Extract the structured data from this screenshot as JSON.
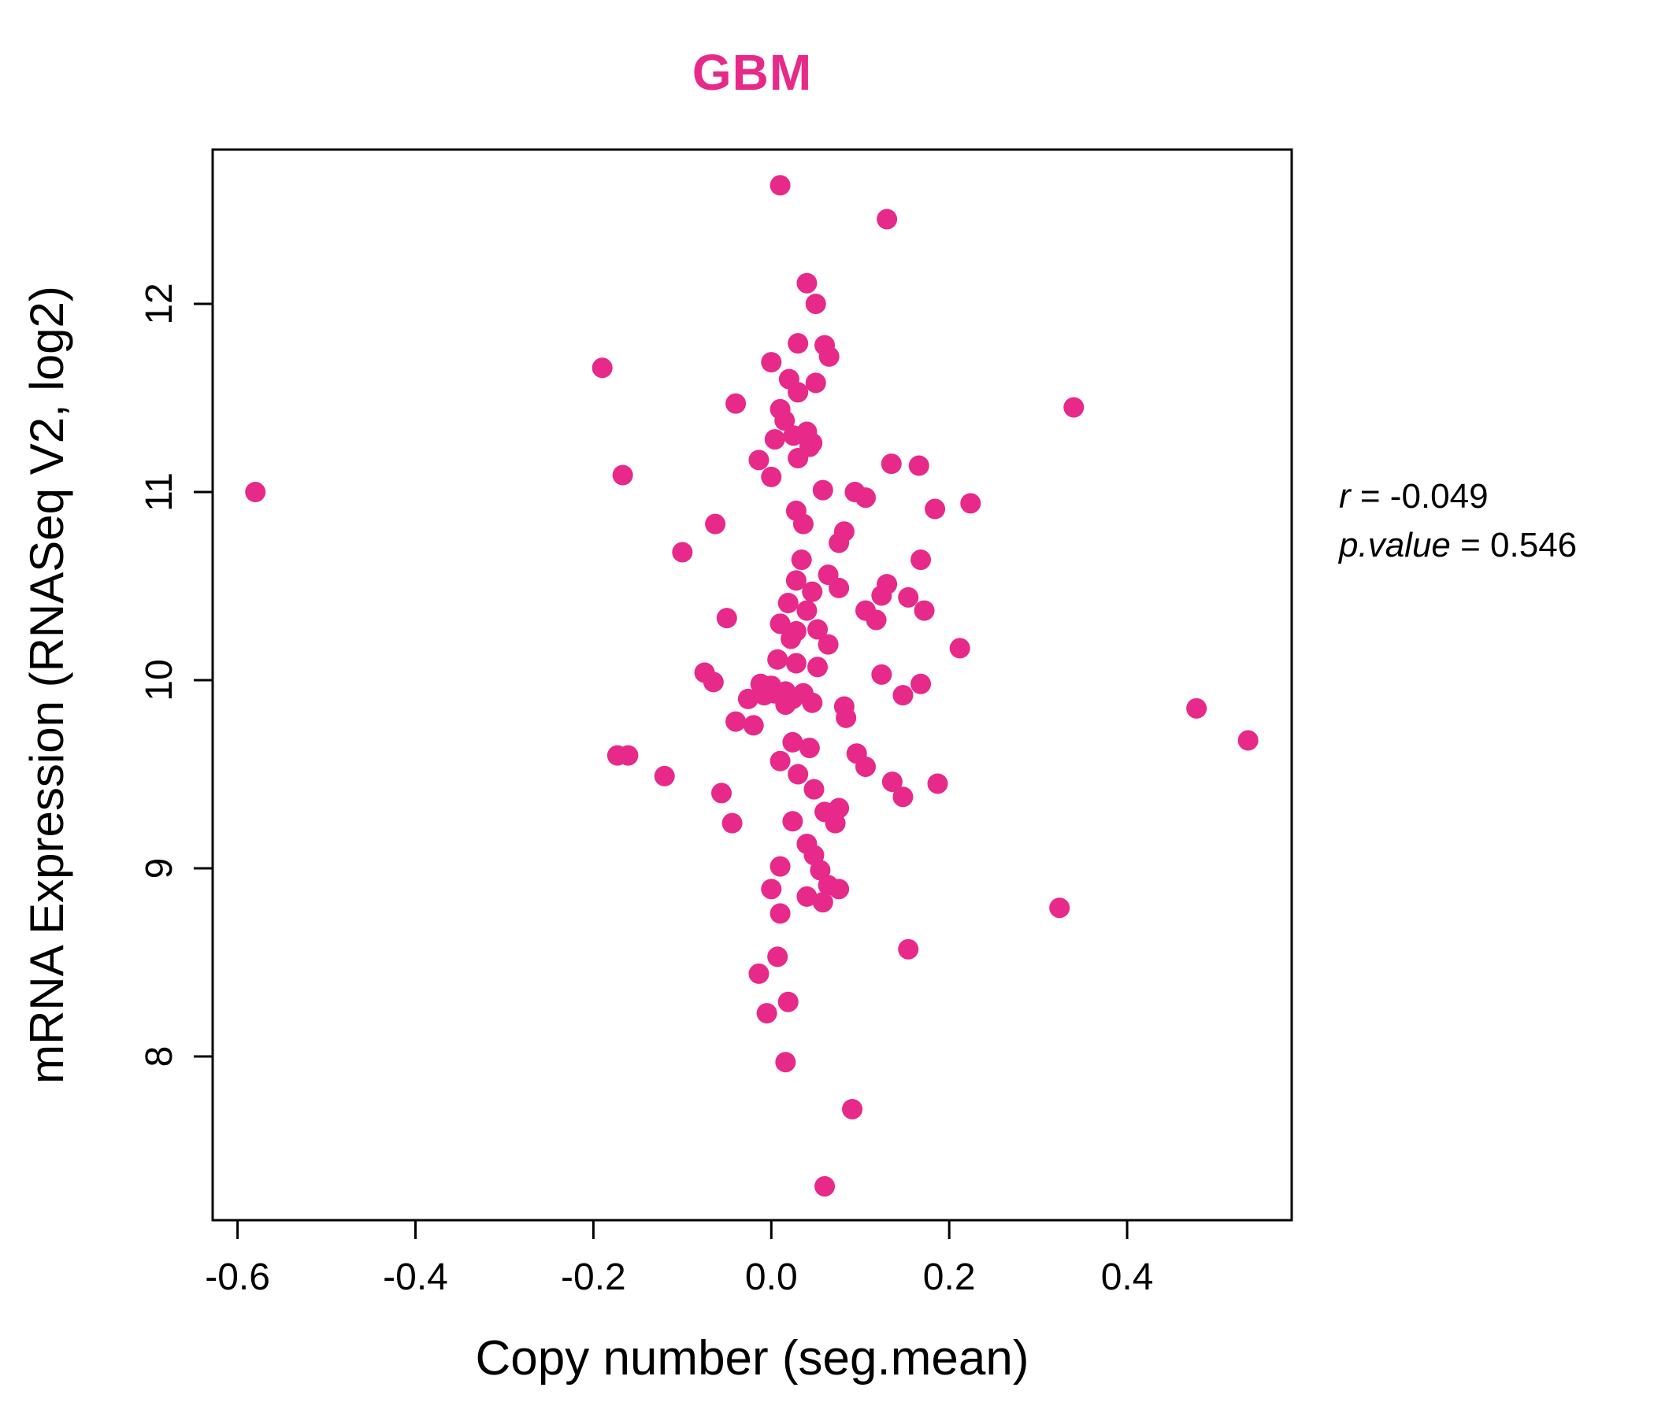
{
  "chart_data": {
    "type": "scatter",
    "title": "GBM",
    "title_color": "#E7298A",
    "point_color": "#E7298A",
    "point_radius": 13,
    "xlabel": "Copy number (seg.mean)",
    "ylabel": "mRNA Expression (RNASeq V2, log2)",
    "xlim": [
      -0.628,
      0.585
    ],
    "ylim": [
      7.13,
      12.82
    ],
    "x_ticks": [
      -0.6,
      -0.4,
      -0.2,
      0.0,
      0.2,
      0.4
    ],
    "x_tick_labels": [
      "-0.6",
      "-0.4",
      "-0.2",
      "0.0",
      "0.2",
      "0.4"
    ],
    "y_ticks": [
      8,
      9,
      10,
      11,
      12
    ],
    "y_tick_labels": [
      "8",
      "9",
      "10",
      "11",
      "12"
    ],
    "grid": false,
    "annotation": {
      "r_label": "r",
      "r_value": " = -0.049",
      "p_label": "p.value",
      "p_value": " = 0.546"
    },
    "points": [
      [
        0.01,
        12.63
      ],
      [
        0.13,
        12.45
      ],
      [
        0.04,
        12.11
      ],
      [
        0.05,
        12.0
      ],
      [
        0.03,
        11.79
      ],
      [
        0.06,
        11.78
      ],
      [
        0.0,
        11.69
      ],
      [
        -0.19,
        11.66
      ],
      [
        0.02,
        11.6
      ],
      [
        0.05,
        11.58
      ],
      [
        0.03,
        11.53
      ],
      [
        0.065,
        11.72
      ],
      [
        0.01,
        11.44
      ],
      [
        -0.04,
        11.47
      ],
      [
        0.34,
        11.45
      ],
      [
        0.015,
        11.38
      ],
      [
        0.025,
        11.3
      ],
      [
        0.04,
        11.32
      ],
      [
        0.043,
        11.24
      ],
      [
        0.004,
        11.28
      ],
      [
        0.03,
        11.18
      ],
      [
        0.046,
        11.26
      ],
      [
        0.135,
        11.15
      ],
      [
        0.166,
        11.14
      ],
      [
        -0.167,
        11.09
      ],
      [
        -0.014,
        11.17
      ],
      [
        0.0,
        11.08
      ],
      [
        -0.58,
        11.0
      ],
      [
        0.058,
        11.01
      ],
      [
        0.094,
        11.0
      ],
      [
        0.106,
        10.97
      ],
      [
        0.224,
        10.94
      ],
      [
        0.028,
        10.9
      ],
      [
        0.036,
        10.83
      ],
      [
        0.184,
        10.91
      ],
      [
        -0.063,
        10.83
      ],
      [
        0.082,
        10.79
      ],
      [
        0.076,
        10.73
      ],
      [
        -0.1,
        10.68
      ],
      [
        0.034,
        10.64
      ],
      [
        0.168,
        10.64
      ],
      [
        0.064,
        10.56
      ],
      [
        0.028,
        10.53
      ],
      [
        0.13,
        10.51
      ],
      [
        0.046,
        10.47
      ],
      [
        0.076,
        10.49
      ],
      [
        0.124,
        10.45
      ],
      [
        0.154,
        10.44
      ],
      [
        0.019,
        10.41
      ],
      [
        0.04,
        10.37
      ],
      [
        0.106,
        10.37
      ],
      [
        0.118,
        10.32
      ],
      [
        0.172,
        10.37
      ],
      [
        0.01,
        10.3
      ],
      [
        0.028,
        10.26
      ],
      [
        0.052,
        10.27
      ],
      [
        -0.05,
        10.33
      ],
      [
        0.022,
        10.22
      ],
      [
        0.064,
        10.19
      ],
      [
        0.212,
        10.17
      ],
      [
        0.007,
        10.11
      ],
      [
        0.028,
        10.09
      ],
      [
        0.052,
        10.07
      ],
      [
        -0.075,
        10.04
      ],
      [
        -0.065,
        9.99
      ],
      [
        -0.012,
        9.98
      ],
      [
        0.0,
        9.97
      ],
      [
        -0.026,
        9.9
      ],
      [
        -0.008,
        9.92
      ],
      [
        0.004,
        9.93
      ],
      [
        0.016,
        9.94
      ],
      [
        0.024,
        9.9
      ],
      [
        0.036,
        9.93
      ],
      [
        0.046,
        9.88
      ],
      [
        0.016,
        9.87
      ],
      [
        0.124,
        10.03
      ],
      [
        0.148,
        9.92
      ],
      [
        0.168,
        9.98
      ],
      [
        0.082,
        9.86
      ],
      [
        0.478,
        9.85
      ],
      [
        -0.04,
        9.78
      ],
      [
        -0.02,
        9.76
      ],
      [
        0.084,
        9.8
      ],
      [
        0.536,
        9.68
      ],
      [
        0.024,
        9.67
      ],
      [
        0.043,
        9.64
      ],
      [
        -0.173,
        9.6
      ],
      [
        -0.161,
        9.6
      ],
      [
        0.01,
        9.57
      ],
      [
        0.096,
        9.61
      ],
      [
        0.106,
        9.54
      ],
      [
        0.03,
        9.5
      ],
      [
        -0.12,
        9.49
      ],
      [
        0.048,
        9.42
      ],
      [
        0.136,
        9.46
      ],
      [
        0.148,
        9.38
      ],
      [
        0.187,
        9.45
      ],
      [
        -0.056,
        9.4
      ],
      [
        0.06,
        9.3
      ],
      [
        0.076,
        9.32
      ],
      [
        0.024,
        9.25
      ],
      [
        0.072,
        9.24
      ],
      [
        -0.044,
        9.24
      ],
      [
        0.04,
        9.13
      ],
      [
        0.048,
        9.07
      ],
      [
        0.01,
        9.01
      ],
      [
        0.055,
        8.99
      ],
      [
        0.064,
        8.91
      ],
      [
        0.076,
        8.89
      ],
      [
        0.0,
        8.89
      ],
      [
        0.04,
        8.85
      ],
      [
        0.058,
        8.82
      ],
      [
        0.324,
        8.79
      ],
      [
        0.01,
        8.76
      ],
      [
        0.154,
        8.57
      ],
      [
        0.007,
        8.53
      ],
      [
        -0.014,
        8.44
      ],
      [
        -0.005,
        8.23
      ],
      [
        0.019,
        8.29
      ],
      [
        0.016,
        7.97
      ],
      [
        0.091,
        7.72
      ],
      [
        0.06,
        7.31
      ]
    ]
  }
}
